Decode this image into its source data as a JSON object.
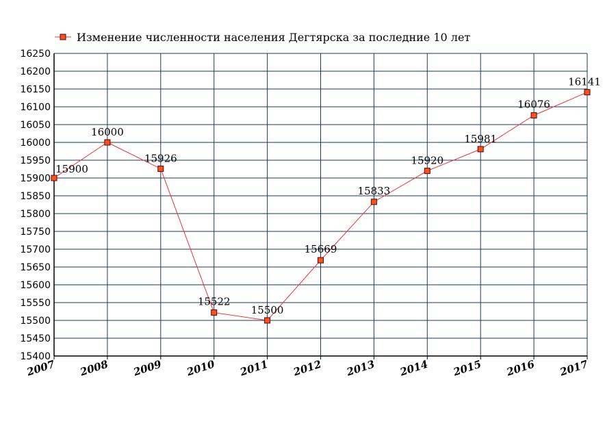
{
  "chart_data": {
    "type": "line",
    "x": [
      "2007",
      "2008",
      "2009",
      "2010",
      "2011",
      "2012",
      "2013",
      "2014",
      "2015",
      "2016",
      "2017"
    ],
    "series": [
      {
        "name": "Изменение численности населения Дегтярска за последние 10 лет",
        "values": [
          15900,
          16000,
          15926,
          15522,
          15500,
          15669,
          15833,
          15920,
          15981,
          16076,
          16141
        ],
        "labels": [
          "15900",
          "16000",
          "15926",
          "15522",
          "15500",
          "15669",
          "15833",
          "15920",
          "15981",
          "16076",
          "16141"
        ]
      }
    ],
    "ylim": [
      15400,
      16250
    ],
    "ytick_step": 50,
    "yticks": [
      "15400",
      "15450",
      "15500",
      "15550",
      "15600",
      "15650",
      "15700",
      "15750",
      "15800",
      "15850",
      "15900",
      "15950",
      "16000",
      "16050",
      "16100",
      "16150",
      "16200",
      "16250"
    ],
    "grid": true,
    "legend": "top",
    "colors": {
      "line": "#ee3333",
      "marker_fill": "#ee5522",
      "marker_stroke": "#660000",
      "grid": "#1a3a5c"
    }
  }
}
